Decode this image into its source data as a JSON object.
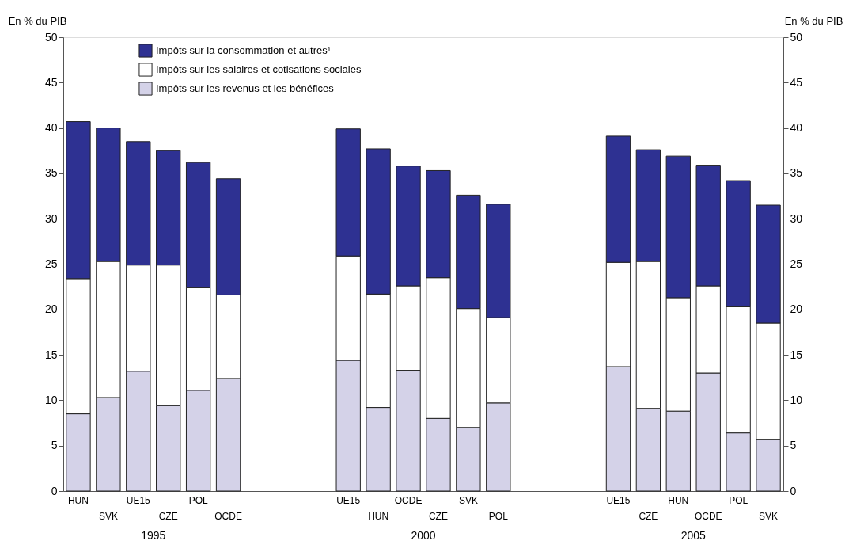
{
  "chart_data": {
    "type": "bar",
    "stacked": true,
    "categories": [
      "HUN",
      "SVK",
      "UE15",
      "CZE",
      "POL",
      "OCDE",
      null,
      null,
      null,
      "UE15",
      "HUN",
      "OCDE",
      "CZE",
      "SVK",
      "POL",
      null,
      null,
      null,
      "UE15",
      "CZE",
      "HUN",
      "OCDE",
      "POL",
      "SVK"
    ],
    "series": [
      {
        "name": "Impôts sur les revenus et les bénéfices",
        "color": "#d4d2e8",
        "values": [
          8.5,
          10.3,
          13.2,
          9.4,
          11.1,
          12.4,
          null,
          null,
          null,
          14.4,
          9.2,
          13.3,
          8.0,
          7.0,
          9.7,
          null,
          null,
          null,
          13.7,
          9.1,
          8.8,
          13.0,
          6.4,
          5.7
        ]
      },
      {
        "name": "Impôts sur les salaires et cotisations sociales",
        "color": "#ffffff",
        "values": [
          14.9,
          15.0,
          11.7,
          15.5,
          11.3,
          9.2,
          null,
          null,
          null,
          11.5,
          12.5,
          9.3,
          15.5,
          13.1,
          9.4,
          null,
          null,
          null,
          11.5,
          16.2,
          12.5,
          9.6,
          13.9,
          12.8
        ]
      },
      {
        "name": "Impôts sur la consommation et autres¹",
        "color": "#2e3192",
        "values": [
          17.3,
          14.7,
          13.6,
          12.6,
          13.8,
          12.8,
          null,
          null,
          null,
          14.0,
          16.0,
          13.2,
          11.8,
          12.5,
          12.5,
          null,
          null,
          null,
          13.9,
          12.3,
          15.6,
          13.3,
          13.9,
          13.0
        ]
      }
    ],
    "ylabel": "En % du PIB",
    "y2label": "En % du PIB",
    "ylim": [
      0,
      50
    ],
    "yticks": [
      0,
      5,
      10,
      15,
      20,
      25,
      30,
      35,
      40,
      45,
      50
    ],
    "y2lim": [
      0,
      50
    ],
    "y2ticks": [
      0,
      5,
      10,
      15,
      20,
      25,
      30,
      35,
      40,
      45,
      50
    ],
    "annotations": [
      "1995",
      "2000",
      "2005"
    ],
    "legend": "top left",
    "grid": false
  }
}
